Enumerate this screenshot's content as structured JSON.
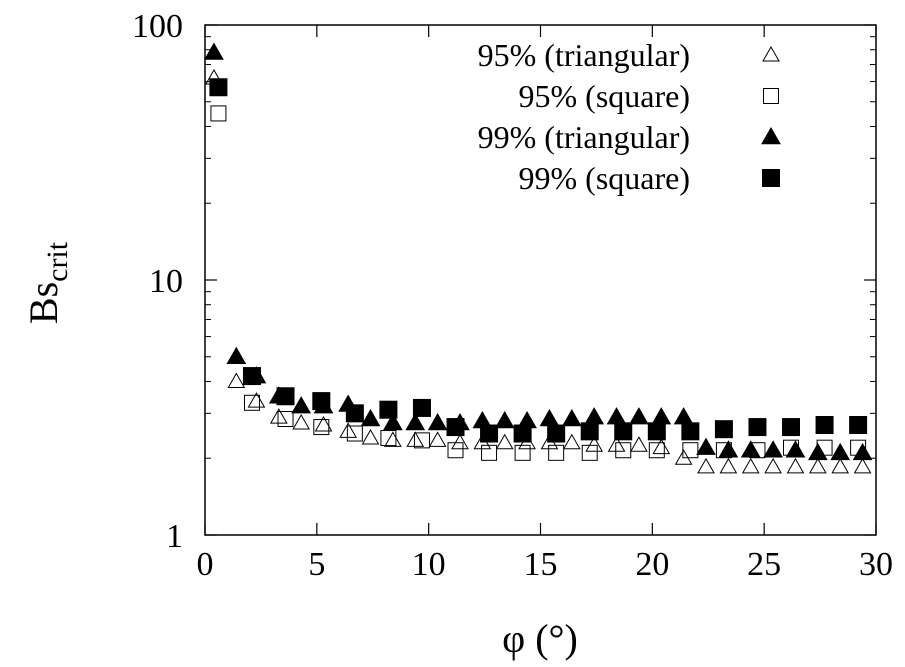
{
  "chart_data": {
    "type": "scatter",
    "title": "",
    "xlabel": "φ (°)",
    "ylabel_main": "Bs",
    "ylabel_sub": "crit",
    "xlim": [
      0,
      30
    ],
    "ylim": [
      1,
      100
    ],
    "y_scale": "log",
    "grid": false,
    "legend_position": "top-right",
    "x_ticks": [
      0,
      5,
      10,
      15,
      20,
      25,
      30
    ],
    "x_tick_labels": [
      "0",
      "5",
      "10",
      "15",
      "20",
      "25",
      "30"
    ],
    "y_ticks": [
      1,
      10,
      100
    ],
    "y_tick_labels": [
      "1",
      "10",
      "100"
    ],
    "series": [
      {
        "name": "95% (triangular)",
        "marker": "triangle-open",
        "x": [
          0.4,
          1.4,
          2.3,
          3.3,
          4.3,
          5.3,
          6.4,
          7.4,
          8.4,
          9.4,
          10.4,
          11.4,
          12.4,
          13.4,
          14.4,
          15.4,
          16.4,
          17.4,
          18.4,
          19.4,
          20.4,
          21.4,
          22.4,
          23.4,
          24.4,
          25.4,
          26.4,
          27.4,
          28.4,
          29.4
        ],
        "y": [
          62,
          4.0,
          3.35,
          2.9,
          2.75,
          2.7,
          2.55,
          2.4,
          2.35,
          2.35,
          2.35,
          2.3,
          2.3,
          2.3,
          2.3,
          2.3,
          2.3,
          2.25,
          2.25,
          2.25,
          2.2,
          2.0,
          1.85,
          1.85,
          1.85,
          1.85,
          1.85,
          1.85,
          1.85,
          1.85
        ]
      },
      {
        "name": "95% (square)",
        "marker": "square-open",
        "x": [
          0.6,
          2.1,
          3.6,
          5.2,
          6.7,
          8.2,
          9.7,
          11.2,
          12.7,
          14.2,
          15.7,
          17.2,
          18.7,
          20.2,
          21.7,
          23.2,
          24.7,
          26.2,
          27.7,
          29.2
        ],
        "y": [
          45,
          3.3,
          2.85,
          2.65,
          2.5,
          2.4,
          2.35,
          2.15,
          2.1,
          2.1,
          2.1,
          2.1,
          2.15,
          2.15,
          2.15,
          2.15,
          2.15,
          2.2,
          2.2,
          2.2
        ]
      },
      {
        "name": "99% (triangular)",
        "marker": "triangle-filled",
        "x": [
          0.4,
          1.4,
          2.3,
          3.3,
          4.3,
          5.3,
          6.4,
          7.4,
          8.4,
          9.4,
          10.4,
          11.4,
          12.4,
          13.4,
          14.4,
          15.4,
          16.4,
          17.4,
          18.4,
          19.4,
          20.4,
          21.4,
          22.4,
          23.4,
          24.4,
          25.4,
          26.4,
          27.4,
          28.4,
          29.4
        ],
        "y": [
          78,
          5.0,
          4.2,
          3.5,
          3.2,
          3.2,
          3.25,
          2.85,
          2.75,
          2.75,
          2.75,
          2.75,
          2.8,
          2.8,
          2.8,
          2.85,
          2.85,
          2.9,
          2.9,
          2.9,
          2.9,
          2.9,
          2.2,
          2.15,
          2.15,
          2.15,
          2.15,
          2.1,
          2.1,
          2.1
        ]
      },
      {
        "name": "99% (square)",
        "marker": "square-filled",
        "x": [
          0.6,
          2.1,
          3.6,
          5.2,
          6.7,
          8.2,
          9.7,
          11.2,
          12.7,
          14.2,
          15.7,
          17.2,
          18.7,
          20.2,
          21.7,
          23.2,
          24.7,
          26.2,
          27.7,
          29.2
        ],
        "y": [
          57,
          4.2,
          3.5,
          3.35,
          3.0,
          3.1,
          3.15,
          2.65,
          2.5,
          2.5,
          2.5,
          2.55,
          2.55,
          2.55,
          2.55,
          2.6,
          2.65,
          2.65,
          2.7,
          2.7
        ]
      }
    ]
  },
  "colors": {
    "axis": "#000000",
    "marker": "#000000",
    "background": "#ffffff"
  }
}
